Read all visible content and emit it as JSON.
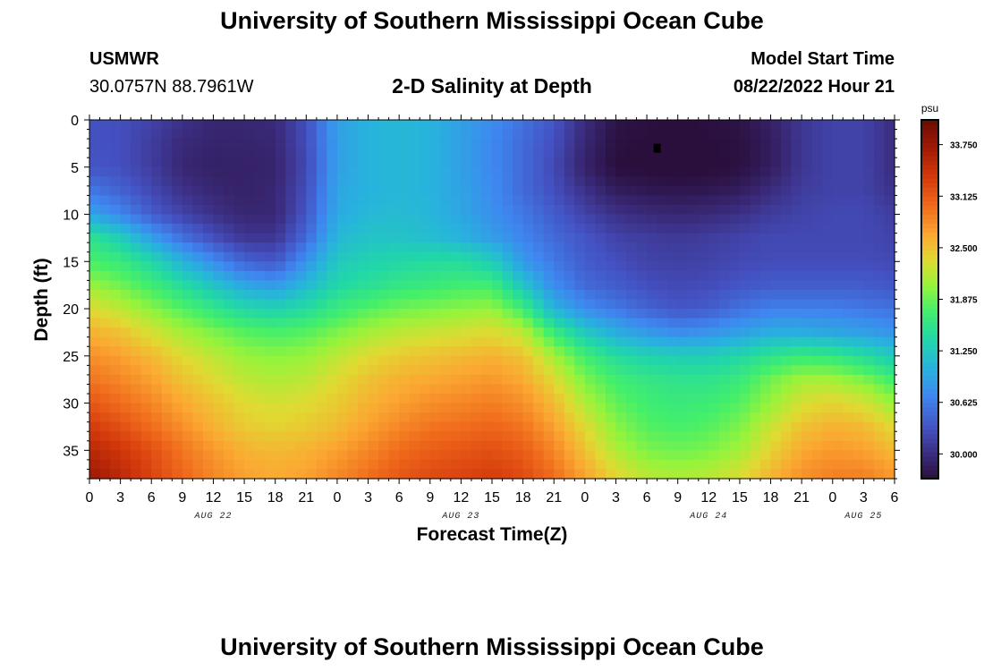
{
  "header": {
    "title": "University of Southern Mississippi Ocean Cube",
    "station": "USMWR",
    "coordinates": "30.0757N  88.7961W",
    "subtitle": "2-D Salinity at Depth",
    "model_start_label": "Model Start Time",
    "model_start_value": "08/22/2022 Hour 21"
  },
  "footer": {
    "title": "University of Southern Mississippi Ocean Cube"
  },
  "chart_data": {
    "type": "heatmap",
    "title": "2-D Salinity at Depth",
    "xlabel": "Forecast Time(Z)",
    "ylabel": "Depth (ft)",
    "x_hours_range": [
      0,
      78
    ],
    "ylim": [
      0,
      38
    ],
    "y_ticks": [
      0,
      5,
      10,
      15,
      20,
      25,
      30,
      35
    ],
    "x_tick_labels": [
      "0",
      "3",
      "6",
      "9",
      "12",
      "15",
      "18",
      "21",
      "0",
      "3",
      "6",
      "9",
      "12",
      "15",
      "18",
      "21",
      "0",
      "3",
      "6",
      "9",
      "12",
      "15",
      "18",
      "21",
      "0",
      "3",
      "6"
    ],
    "date_labels": [
      {
        "label": "AUG 22",
        "hour": 12
      },
      {
        "label": "AUG 23",
        "hour": 36
      },
      {
        "label": "AUG 24",
        "hour": 60
      },
      {
        "label": "AUG 25",
        "hour": 75
      }
    ],
    "colorbar": {
      "unit": "psu",
      "min": 29.7,
      "max": 34.05,
      "ticks": [
        29.5,
        30.0,
        30.625,
        31.25,
        31.875,
        32.5,
        33.125,
        33.75
      ],
      "tick_labels": [
        "",
        "30.000",
        "30.625",
        "31.250",
        "31.875",
        "32.500",
        "33.125",
        "33.750"
      ],
      "stops": [
        [
          0.0,
          "#2a0f3d"
        ],
        [
          0.07,
          "#3b2c7e"
        ],
        [
          0.14,
          "#4450c0"
        ],
        [
          0.23,
          "#3f86f0"
        ],
        [
          0.31,
          "#27b3dd"
        ],
        [
          0.39,
          "#21d7a8"
        ],
        [
          0.47,
          "#44ef6a"
        ],
        [
          0.54,
          "#98f33a"
        ],
        [
          0.61,
          "#e0da32"
        ],
        [
          0.68,
          "#fba832"
        ],
        [
          0.76,
          "#f06b1c"
        ],
        [
          0.84,
          "#d53a0c"
        ],
        [
          0.92,
          "#a31b04"
        ],
        [
          1.0,
          "#6a0b02"
        ]
      ]
    },
    "grid": false,
    "salinity_psu": {
      "depths_ft": [
        0,
        2.5,
        5,
        7.5,
        10,
        12.5,
        15,
        17.5,
        20,
        22.5,
        25,
        27.5,
        30,
        32.5,
        35,
        38
      ],
      "hours": [
        0,
        3,
        6,
        9,
        12,
        15,
        18,
        21,
        24,
        27,
        30,
        33,
        36,
        39,
        42,
        45,
        48,
        51,
        54,
        57,
        60,
        63,
        66,
        69,
        72,
        75,
        78
      ],
      "values": [
        [
          30.32,
          30.3,
          30.2,
          30.05,
          29.95,
          29.95,
          29.98,
          30.3,
          30.9,
          31.05,
          31.1,
          31.05,
          30.9,
          30.75,
          30.55,
          30.35,
          30.0,
          29.75,
          29.72,
          29.7,
          29.72,
          29.75,
          29.9,
          30.1,
          30.2,
          30.2,
          30.0
        ],
        [
          30.32,
          30.3,
          30.15,
          29.98,
          29.92,
          29.92,
          29.95,
          30.28,
          30.9,
          31.05,
          31.1,
          31.05,
          30.9,
          30.72,
          30.5,
          30.3,
          29.95,
          29.72,
          29.7,
          29.65,
          29.7,
          29.72,
          29.85,
          30.1,
          30.2,
          30.2,
          30.0
        ],
        [
          30.35,
          30.3,
          30.15,
          29.95,
          29.88,
          29.9,
          29.92,
          30.25,
          30.9,
          31.05,
          31.1,
          31.05,
          30.9,
          30.72,
          30.5,
          30.25,
          29.9,
          29.7,
          29.68,
          29.65,
          29.68,
          29.72,
          29.85,
          30.1,
          30.2,
          30.2,
          30.0
        ],
        [
          30.6,
          30.45,
          30.25,
          30.05,
          29.95,
          29.9,
          29.95,
          30.3,
          30.95,
          31.05,
          31.1,
          31.05,
          30.92,
          30.75,
          30.5,
          30.3,
          30.05,
          29.85,
          29.8,
          29.78,
          29.8,
          29.85,
          30.0,
          30.15,
          30.2,
          30.2,
          30.05
        ],
        [
          30.95,
          30.7,
          30.4,
          30.2,
          30.05,
          29.95,
          29.95,
          30.35,
          30.98,
          31.1,
          31.12,
          31.08,
          30.95,
          30.78,
          30.6,
          30.4,
          30.2,
          30.05,
          29.98,
          29.95,
          29.98,
          30.05,
          30.15,
          30.2,
          30.25,
          30.25,
          30.15
        ],
        [
          31.55,
          31.3,
          30.9,
          30.55,
          30.3,
          30.1,
          30.1,
          30.5,
          31.1,
          31.2,
          31.2,
          31.15,
          31.05,
          30.9,
          30.7,
          30.5,
          30.35,
          30.2,
          30.15,
          30.12,
          30.15,
          30.2,
          30.25,
          30.25,
          30.25,
          30.25,
          30.2
        ],
        [
          31.75,
          31.65,
          31.4,
          31.05,
          30.75,
          30.45,
          30.35,
          30.8,
          31.25,
          31.35,
          31.4,
          31.45,
          31.45,
          31.3,
          30.85,
          30.6,
          30.4,
          30.3,
          30.2,
          30.18,
          30.2,
          30.25,
          30.28,
          30.28,
          30.28,
          30.28,
          30.25
        ],
        [
          32.05,
          31.9,
          31.7,
          31.45,
          31.2,
          30.95,
          30.85,
          31.1,
          31.4,
          31.5,
          31.6,
          31.65,
          31.7,
          31.7,
          31.2,
          30.75,
          30.5,
          30.4,
          30.3,
          30.25,
          30.28,
          30.35,
          30.4,
          30.4,
          30.4,
          30.4,
          30.35
        ],
        [
          32.35,
          32.2,
          32.0,
          31.8,
          31.6,
          31.4,
          31.35,
          31.45,
          31.65,
          31.8,
          31.9,
          31.95,
          32.0,
          32.05,
          31.7,
          31.05,
          30.75,
          30.6,
          30.45,
          30.35,
          30.4,
          30.55,
          30.65,
          30.65,
          30.65,
          30.6,
          30.55
        ],
        [
          32.6,
          32.5,
          32.3,
          32.1,
          31.95,
          31.8,
          31.75,
          31.8,
          31.95,
          32.1,
          32.2,
          32.25,
          32.3,
          32.35,
          32.2,
          31.65,
          31.25,
          31.0,
          30.85,
          30.75,
          30.8,
          30.9,
          31.0,
          31.0,
          30.95,
          30.9,
          30.8
        ],
        [
          32.8,
          32.7,
          32.55,
          32.35,
          32.2,
          32.05,
          32.0,
          32.05,
          32.2,
          32.35,
          32.45,
          32.5,
          32.55,
          32.6,
          32.5,
          32.1,
          31.7,
          31.45,
          31.35,
          31.3,
          31.3,
          31.4,
          31.55,
          31.65,
          31.6,
          31.45,
          31.25
        ],
        [
          32.95,
          32.85,
          32.7,
          32.5,
          32.35,
          32.2,
          32.15,
          32.2,
          32.35,
          32.5,
          32.6,
          32.65,
          32.7,
          32.75,
          32.65,
          32.35,
          31.95,
          31.7,
          31.6,
          31.55,
          31.55,
          31.65,
          31.9,
          32.1,
          32.1,
          31.95,
          31.7
        ],
        [
          33.15,
          33.0,
          32.85,
          32.65,
          32.5,
          32.35,
          32.3,
          32.35,
          32.45,
          32.6,
          32.7,
          32.8,
          32.85,
          32.9,
          32.8,
          32.55,
          32.15,
          31.85,
          31.7,
          31.65,
          31.68,
          31.8,
          32.05,
          32.3,
          32.4,
          32.3,
          32.05
        ],
        [
          33.35,
          33.2,
          33.0,
          32.8,
          32.6,
          32.45,
          32.4,
          32.45,
          32.55,
          32.7,
          32.85,
          32.95,
          33.0,
          33.05,
          32.95,
          32.7,
          32.35,
          32.0,
          31.8,
          31.75,
          31.8,
          31.95,
          32.25,
          32.5,
          32.6,
          32.55,
          32.35
        ],
        [
          33.55,
          33.4,
          33.2,
          32.95,
          32.75,
          32.6,
          32.55,
          32.6,
          32.7,
          32.85,
          33.0,
          33.1,
          33.15,
          33.2,
          33.1,
          32.85,
          32.5,
          32.15,
          31.95,
          31.9,
          31.95,
          32.1,
          32.4,
          32.65,
          32.75,
          32.7,
          32.55
        ],
        [
          33.75,
          33.55,
          33.3,
          33.05,
          32.85,
          32.7,
          32.65,
          32.7,
          32.85,
          33.0,
          33.15,
          33.25,
          33.3,
          33.35,
          33.25,
          33.0,
          32.7,
          32.4,
          32.2,
          32.15,
          32.2,
          32.35,
          32.6,
          32.8,
          32.9,
          32.9,
          32.75
        ]
      ]
    },
    "marker": {
      "hour": 55,
      "depth_ft": 3
    }
  }
}
